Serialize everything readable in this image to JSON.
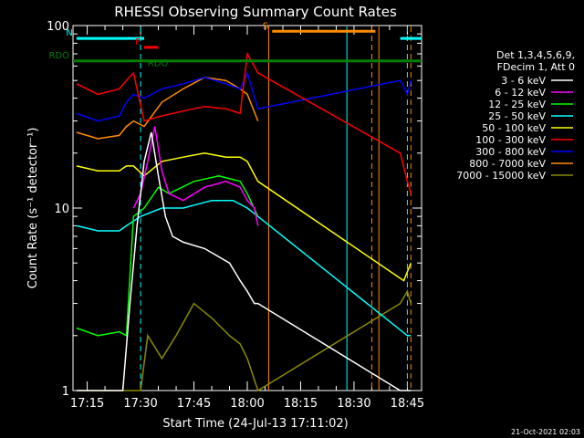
{
  "chart_data": {
    "type": "line",
    "title": "RHESSI Observing Summary Count Rates",
    "xlabel": "Start Time (24-Jul-13 17:11:02)",
    "ylabel": "Count Rate (s⁻¹ detector⁻¹)",
    "yscale": "log",
    "ylim": [
      1,
      100
    ],
    "xlim": [
      "17:11",
      "18:49"
    ],
    "x_ticks": [
      "17:15",
      "17:30",
      "17:45",
      "18:00",
      "18:15",
      "18:30",
      "18:45"
    ],
    "y_ticks": [
      "1",
      "10",
      "100"
    ],
    "timestamp": "21-Oct-2021 02:03",
    "legend_header": [
      "Det 1,3,4,5,6,9,",
      "FDecim 1, Att 0"
    ],
    "legend_placement": "right",
    "series": [
      {
        "name": "3 - 6 keV",
        "color": "#ffffff",
        "x": [
          "17:12",
          "17:25",
          "17:27",
          "17:29",
          "17:31",
          "17:33",
          "17:35",
          "17:37",
          "17:39",
          "17:42",
          "17:48",
          "17:55",
          "17:58",
          "18:00",
          "18:02",
          "18:03",
          "18:43",
          "18:46"
        ],
        "y": [
          1,
          1,
          3,
          8,
          18,
          26,
          15,
          9,
          7,
          6.5,
          6,
          5,
          4,
          3.5,
          3,
          3,
          1,
          1
        ]
      },
      {
        "name": "6 - 12 keV",
        "color": "#ff00ff",
        "x": [
          "17:28",
          "17:30",
          "17:32",
          "17:34",
          "17:36",
          "17:38",
          "17:42",
          "17:48",
          "17:54",
          "17:58",
          "18:00",
          "18:02",
          "18:03"
        ],
        "y": [
          10,
          12,
          18,
          28,
          16,
          12,
          11,
          13,
          14,
          13,
          11,
          10,
          8
        ]
      },
      {
        "name": "12 - 25 keV",
        "color": "#00ff00",
        "x": [
          "17:12",
          "17:18",
          "17:24",
          "17:26",
          "17:28",
          "17:31",
          "17:35",
          "17:38",
          "17:45",
          "17:52",
          "17:58",
          "18:00",
          "18:03"
        ],
        "y": [
          2.2,
          2,
          2.1,
          2,
          9,
          10,
          13,
          12,
          14,
          15,
          14,
          12,
          9
        ]
      },
      {
        "name": "25 - 50 keV",
        "color": "#00ffff",
        "x": [
          "17:12",
          "17:18",
          "17:24",
          "17:26",
          "17:30",
          "17:36",
          "17:42",
          "17:50",
          "17:56",
          "18:00",
          "18:03",
          "18:45",
          "18:46"
        ],
        "y": [
          8,
          7.5,
          7.5,
          8,
          9,
          10,
          10,
          11,
          11,
          10,
          9,
          2,
          2
        ]
      },
      {
        "name": "50 - 100 keV",
        "color": "#ffff00",
        "x": [
          "17:12",
          "17:18",
          "17:24",
          "17:26",
          "17:28",
          "17:31",
          "17:36",
          "17:42",
          "17:48",
          "17:54",
          "17:58",
          "18:00",
          "18:03",
          "18:44",
          "18:46"
        ],
        "y": [
          17,
          16,
          16,
          17,
          17,
          15,
          18,
          19,
          20,
          19,
          19,
          18,
          14,
          4,
          5
        ]
      },
      {
        "name": "100 - 300 keV",
        "color": "#ff0000",
        "x": [
          "17:12",
          "17:18",
          "17:24",
          "17:26",
          "17:28",
          "17:31",
          "17:36",
          "17:42",
          "17:48",
          "17:54",
          "17:58",
          "18:00",
          "18:03",
          "18:43",
          "18:45",
          "18:46"
        ],
        "y": [
          48,
          42,
          45,
          50,
          55,
          30,
          32,
          34,
          36,
          35,
          33,
          70,
          55,
          20,
          14,
          12
        ]
      },
      {
        "name": "300 - 800 keV",
        "color": "#0000ff",
        "x": [
          "17:12",
          "17:18",
          "17:24",
          "17:26",
          "17:28",
          "17:31",
          "17:36",
          "17:42",
          "17:48",
          "17:54",
          "17:58",
          "18:00",
          "18:03",
          "18:43",
          "18:45",
          "18:46"
        ],
        "y": [
          33,
          30,
          32,
          38,
          42,
          40,
          45,
          48,
          52,
          48,
          45,
          55,
          35,
          50,
          42,
          50
        ]
      },
      {
        "name": "800 - 7000 keV",
        "color": "#ff8c00",
        "x": [
          "17:12",
          "17:18",
          "17:24",
          "17:26",
          "17:28",
          "17:31",
          "17:36",
          "17:42",
          "17:48",
          "17:54",
          "17:58",
          "18:00",
          "18:03"
        ],
        "y": [
          26,
          24,
          25,
          28,
          30,
          28,
          38,
          45,
          52,
          50,
          45,
          42,
          30
        ]
      },
      {
        "name": "7000 - 15000 keV",
        "color": "#8b8b00",
        "x": [
          "17:12",
          "17:30",
          "17:32",
          "17:36",
          "17:40",
          "17:45",
          "17:50",
          "17:55",
          "17:58",
          "18:00",
          "18:03",
          "18:43",
          "18:45",
          "18:46"
        ],
        "y": [
          1,
          1,
          2,
          1.5,
          2,
          3,
          2.5,
          2,
          1.8,
          1.5,
          1,
          3,
          3.5,
          3
        ]
      }
    ],
    "attenuator_markers": [
      {
        "label": "N",
        "color": "#00ffff",
        "x0": "17:12",
        "x1": "17:31",
        "y": 85
      },
      {
        "label": "",
        "color": "#00ffff",
        "x0": "18:43",
        "x1": "18:49",
        "y": 85
      },
      {
        "label": "F",
        "color": "#ff0000",
        "x0": "17:31",
        "x1": "17:35",
        "y": 76
      },
      {
        "label": "S",
        "color": "#ff8c00",
        "x0": "18:07",
        "x1": "18:36",
        "y": 93
      },
      {
        "label": "RDO",
        "color": "#008000",
        "x0": "17:11",
        "x1": "18:49",
        "y": 64
      }
    ],
    "extra_labels": [
      "RDO"
    ],
    "vlines": [
      {
        "x": "17:30",
        "color": "#00ffff",
        "dash": true
      },
      {
        "x": "18:06",
        "color": "#ff8c00",
        "dash": false
      },
      {
        "x": "18:28",
        "color": "#00ffff",
        "dash": false
      },
      {
        "x": "18:35",
        "color": "#ff8c00",
        "dash": true
      },
      {
        "x": "18:37",
        "color": "#ff8c00",
        "dash": false
      },
      {
        "x": "18:45",
        "color": "#00ffff",
        "dash": true
      },
      {
        "x": "18:46",
        "color": "#ff8c00",
        "dash": true
      }
    ]
  }
}
